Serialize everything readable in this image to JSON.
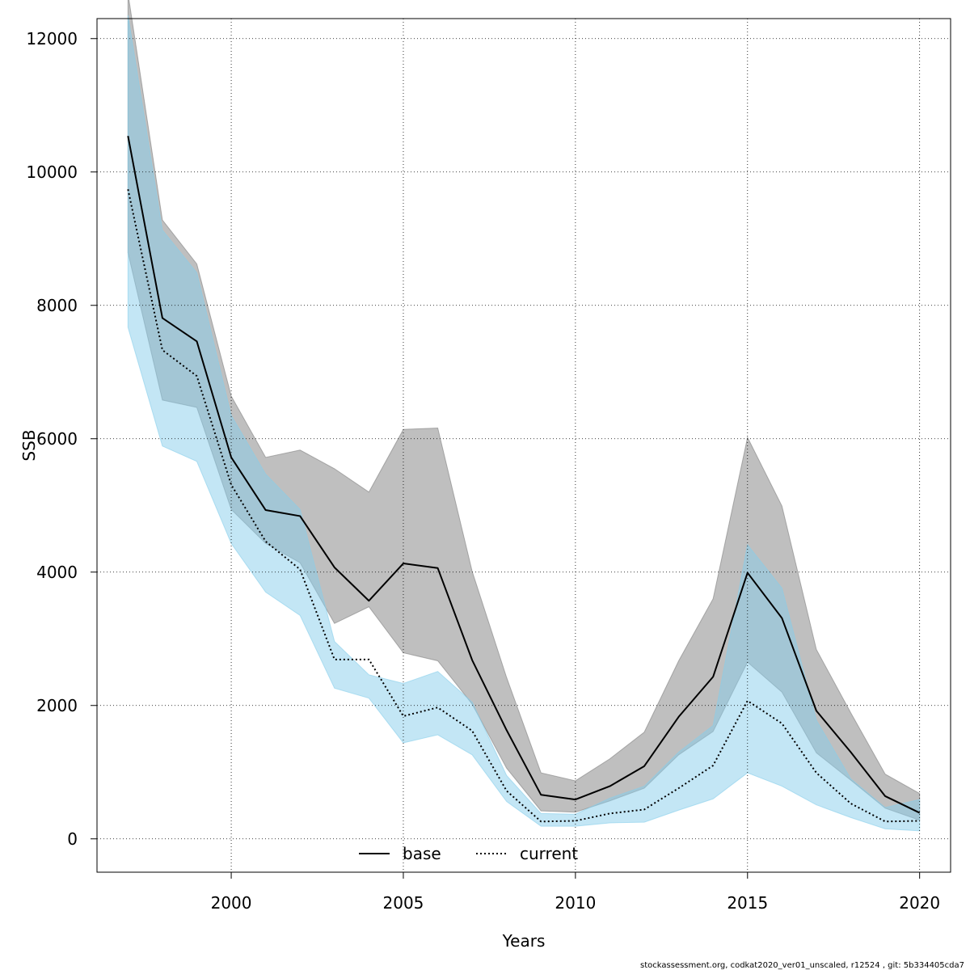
{
  "chart_data": {
    "type": "line",
    "title": "",
    "xlabel": "Years",
    "ylabel": "SSB",
    "xlim": [
      1996.1,
      2020.9
    ],
    "ylim": [
      -500,
      12300
    ],
    "x_ticks": [
      2000,
      2005,
      2010,
      2015,
      2020
    ],
    "x_tick_labels": [
      "2000",
      "2005",
      "2010",
      "2015",
      "2020"
    ],
    "y_ticks": [
      0,
      2000,
      4000,
      6000,
      8000,
      10000,
      12000
    ],
    "y_tick_labels": [
      "0",
      "2000",
      "4000",
      "6000",
      "8000",
      "10000",
      "12000"
    ],
    "grid": true,
    "legend_position": "bottom-center",
    "x": [
      1997,
      1998,
      1999,
      2000,
      2001,
      2002,
      2003,
      2004,
      2005,
      2006,
      2007,
      2008,
      2009,
      2010,
      2011,
      2012,
      2013,
      2014,
      2015,
      2016,
      2017,
      2018,
      2019,
      2020
    ],
    "series": [
      {
        "name": "base",
        "style": "solid",
        "color": "#000000",
        "band_color": "#808080",
        "values": [
          10540,
          7810,
          7460,
          5720,
          4930,
          4840,
          4070,
          3570,
          4130,
          4060,
          2680,
          1630,
          660,
          590,
          790,
          1090,
          1830,
          2430,
          3990,
          3310,
          1920,
          1300,
          640,
          390
        ],
        "lower": [
          8790,
          6580,
          6470,
          4940,
          4430,
          4140,
          3230,
          3480,
          2790,
          2670,
          2020,
          1060,
          420,
          400,
          570,
          760,
          1260,
          1610,
          2650,
          2200,
          1290,
          880,
          460,
          280
        ],
        "upper": [
          12680,
          9280,
          8620,
          6640,
          5720,
          5830,
          5550,
          5200,
          6140,
          6160,
          4010,
          2420,
          990,
          870,
          1200,
          1600,
          2670,
          3600,
          6020,
          4990,
          2840,
          1890,
          970,
          680
        ]
      },
      {
        "name": "current",
        "style": "dotted",
        "color": "#000000",
        "band_color": "#87CEEB",
        "values": [
          9740,
          7330,
          6940,
          5310,
          4460,
          4040,
          2690,
          2690,
          1840,
          1970,
          1620,
          720,
          260,
          270,
          380,
          440,
          760,
          1100,
          2070,
          1730,
          990,
          530,
          260,
          270
        ],
        "lower": [
          7670,
          5890,
          5660,
          4430,
          3700,
          3350,
          2260,
          2110,
          1440,
          1560,
          1260,
          560,
          190,
          190,
          240,
          250,
          430,
          600,
          990,
          790,
          510,
          320,
          150,
          120
        ],
        "upper": [
          12350,
          9130,
          8490,
          6350,
          5470,
          4940,
          2960,
          2460,
          2330,
          2510,
          2050,
          950,
          380,
          370,
          610,
          790,
          1300,
          1700,
          4410,
          3760,
          1780,
          900,
          470,
          590
        ]
      }
    ]
  },
  "footer": "stockassessment.org, codkat2020_ver01_unscaled, r12524 , git: 5b334405cda7"
}
